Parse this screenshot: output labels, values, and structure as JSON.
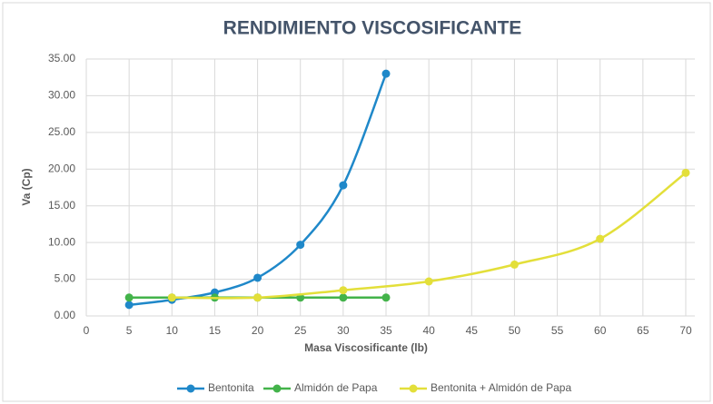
{
  "chart_data": {
    "type": "scatter",
    "title": "RENDIMIENTO VISCOSIFICANTE",
    "x_label": "Masa Viscosificante (lb)",
    "y_label": "Va (Cp)",
    "xlim": [
      0,
      70
    ],
    "xticks": [
      0,
      5,
      10,
      15,
      20,
      25,
      30,
      35,
      40,
      45,
      50,
      55,
      60,
      65,
      70
    ],
    "ylim": [
      0,
      35
    ],
    "yticks": [
      {
        "value": 0,
        "label": "0.00"
      },
      {
        "value": 5,
        "label": "5.00"
      },
      {
        "value": 10,
        "label": "10.00"
      },
      {
        "value": 15,
        "label": "15.00"
      },
      {
        "value": 20,
        "label": "20.00"
      },
      {
        "value": 25,
        "label": "25.00"
      },
      {
        "value": 30,
        "label": "30.00"
      },
      {
        "value": 35,
        "label": "35.00"
      }
    ],
    "grid": true,
    "smooth": true,
    "legend": "bottom",
    "series": [
      {
        "name": "Bentonita",
        "color": "#1f88c9",
        "x": [
          5,
          10,
          15,
          20,
          25,
          30,
          35
        ],
        "values": [
          1.5,
          2.2,
          3.2,
          5.2,
          9.7,
          17.8,
          33
        ]
      },
      {
        "name": "Almidón de Papa",
        "color": "#43b34a",
        "x": [
          5,
          10,
          15,
          20,
          25,
          30,
          35
        ],
        "values": [
          2.5,
          2.5,
          2.5,
          2.5,
          2.5,
          2.5,
          2.5
        ]
      },
      {
        "name": "Bentonita + Almidón de Papa",
        "color": "#e3df3a",
        "x": [
          10,
          20,
          30,
          40,
          50,
          60,
          70
        ],
        "values": [
          2.5,
          2.5,
          3.5,
          4.7,
          7,
          10.5,
          19.5
        ]
      }
    ]
  }
}
